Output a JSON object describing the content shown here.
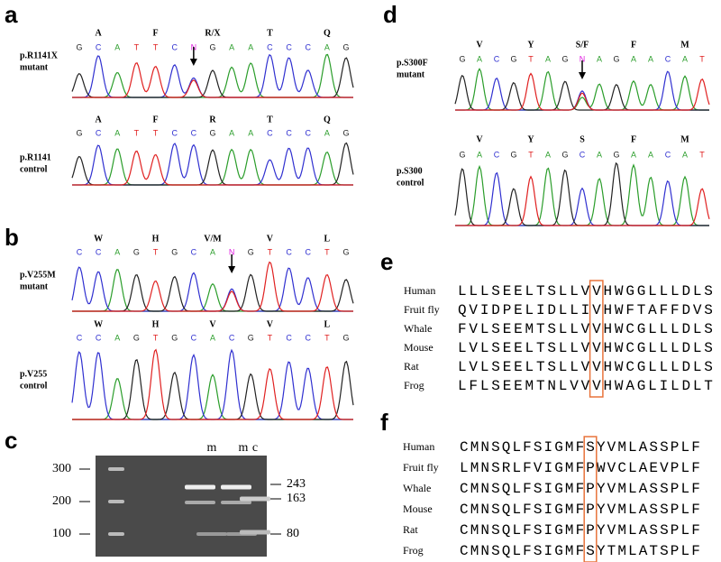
{
  "panels": [
    {
      "label": "a",
      "samples": [
        {
          "name": "p.R1141X",
          "sub": "mutant",
          "aa": [
            "A",
            "F",
            "R/X",
            "T",
            "Q"
          ],
          "bases": [
            "G",
            "C",
            "A",
            "T",
            "T",
            "C",
            "N",
            "G",
            "A",
            "A",
            "C",
            "C",
            "C",
            "A",
            "G"
          ]
        },
        {
          "name": "p.R1141",
          "sub": "control",
          "aa": [
            "A",
            "F",
            "R",
            "T",
            "Q"
          ],
          "bases": [
            "G",
            "C",
            "A",
            "T",
            "T",
            "C",
            "C",
            "G",
            "A",
            "A",
            "C",
            "C",
            "C",
            "A",
            "G"
          ]
        }
      ]
    },
    {
      "label": "b",
      "samples": [
        {
          "name": "p.V255M",
          "sub": "mutant",
          "aa": [
            "W",
            "H",
            "V/M",
            "V",
            "L"
          ],
          "bases": [
            "C",
            "C",
            "A",
            "G",
            "T",
            "G",
            "C",
            "A",
            "N",
            "G",
            "T",
            "C",
            "C",
            "T",
            "G"
          ]
        },
        {
          "name": "p.V255",
          "sub": "control",
          "aa": [
            "W",
            "H",
            "V",
            "V",
            "L"
          ],
          "bases": [
            "C",
            "C",
            "A",
            "G",
            "T",
            "G",
            "C",
            "A",
            "C",
            "G",
            "T",
            "C",
            "C",
            "T",
            "G"
          ]
        }
      ]
    },
    {
      "label": "d",
      "samples": [
        {
          "name": "p.S300F",
          "sub": "mutant",
          "aa": [
            "V",
            "Y",
            "S/F",
            "F",
            "M"
          ],
          "bases": [
            "G",
            "A",
            "C",
            "G",
            "T",
            "A",
            "G",
            "N",
            "A",
            "G",
            "A",
            "A",
            "C",
            "A",
            "T"
          ]
        },
        {
          "name": "p.S300",
          "sub": "control",
          "aa": [
            "V",
            "Y",
            "S",
            "F",
            "M"
          ],
          "bases": [
            "G",
            "A",
            "C",
            "G",
            "T",
            "A",
            "G",
            "C",
            "A",
            "G",
            "A",
            "A",
            "C",
            "A",
            "T"
          ]
        }
      ]
    }
  ],
  "gel": {
    "label": "c",
    "lanes": [
      "m",
      "m",
      "c"
    ],
    "ladder": [
      300,
      200,
      100
    ],
    "bands": [
      243,
      163,
      80
    ]
  },
  "alignments": [
    {
      "label": "e",
      "rows": [
        [
          "Human",
          "LLLSEELTSLLVVHWGGLLLDLS"
        ],
        [
          "Fruit fly",
          "QVIDPELIDLLIVHWFTAFFDVS"
        ],
        [
          "Whale",
          "FVLSEEMTSLLVVHWCGLLLDLS"
        ],
        [
          "Mouse",
          "LVLSEELTSLLVVHWCGLLLDLS"
        ],
        [
          "Rat",
          "LVLSEELTSLLVVHWCGLLLDLS"
        ],
        [
          "Frog",
          "LFLSEEMTNLVVVHWAGLILDLT"
        ]
      ]
    },
    {
      "label": "f",
      "rows": [
        [
          "Human",
          "CMNSQLFSIGMFSYVMLASSPLF"
        ],
        [
          "Fruit fly",
          "LMNSRLFVIGMFPWVCLAEVPLF"
        ],
        [
          "Whale",
          "CMNSQLFSIGMFPYVMLASSPLF"
        ],
        [
          "Mouse",
          "CMNSQLFSIGMFPYVMLASSPLF"
        ],
        [
          "Rat",
          "CMNSQLFSIGMFPYVMLASSPLF"
        ],
        [
          "Frog",
          "CMNSQLFSIGMFSYTMLATSPLF"
        ]
      ]
    }
  ]
}
